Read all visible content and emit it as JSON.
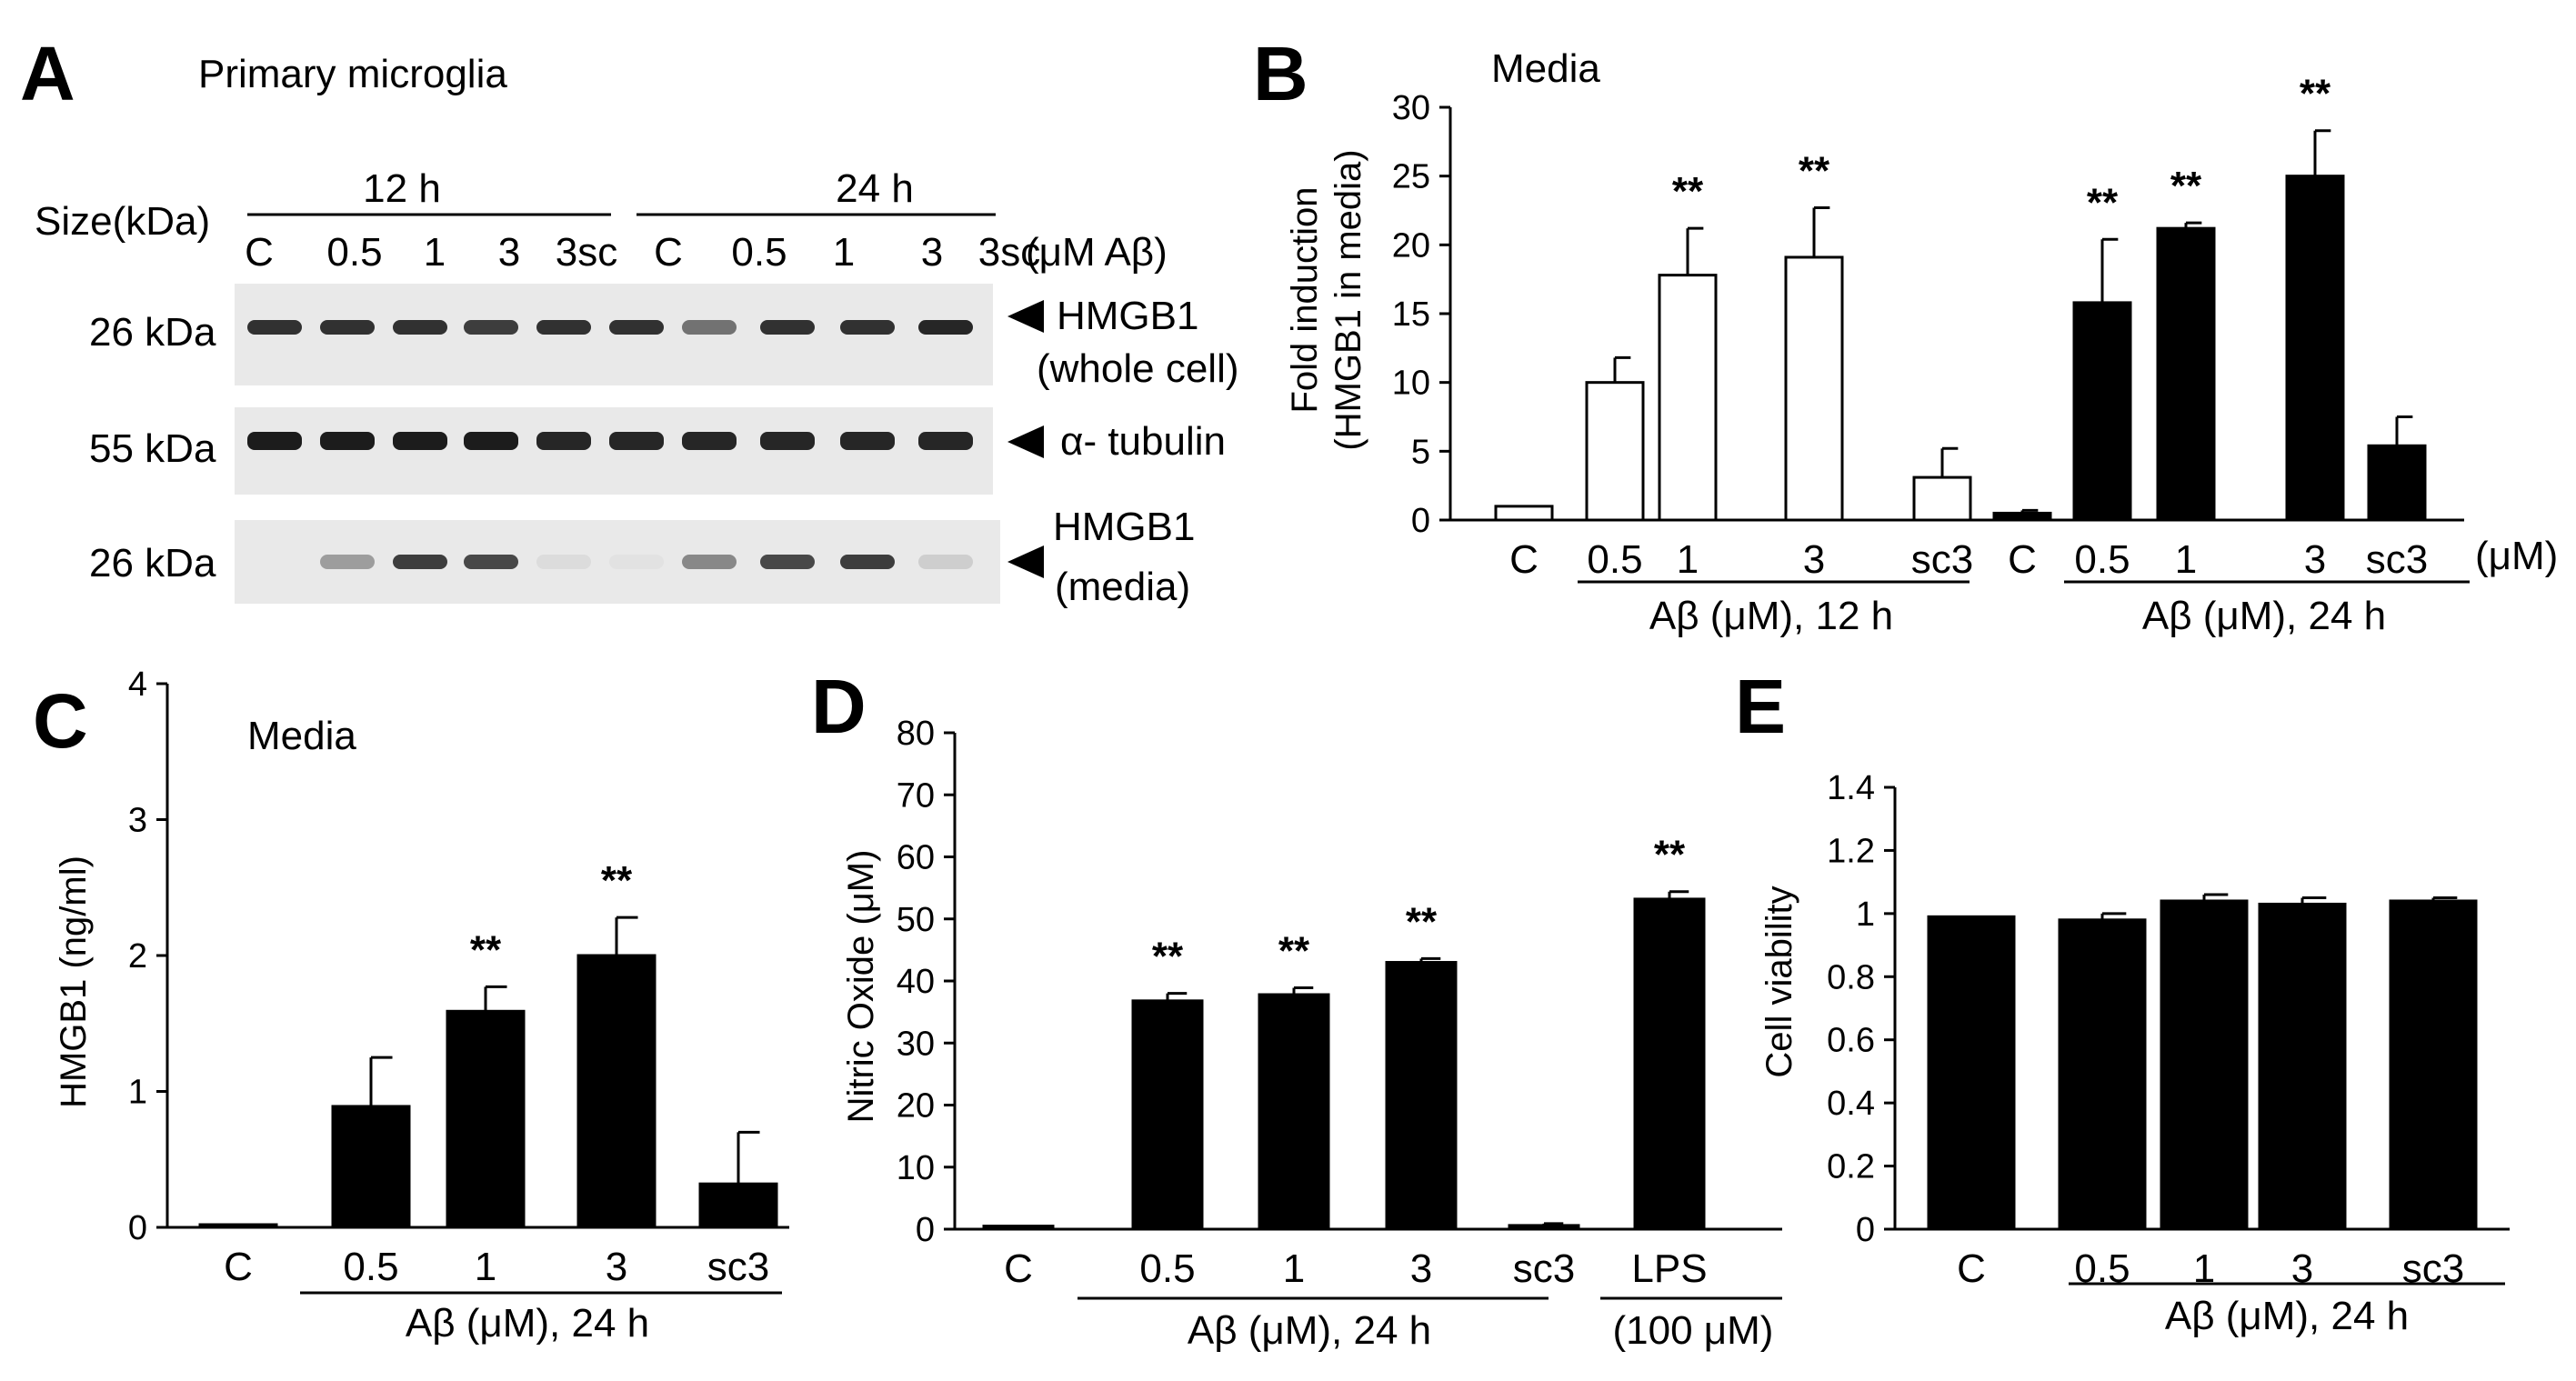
{
  "colors": {
    "ink": "#000000",
    "open_bar": "#ffffff",
    "filled_bar": "#000000",
    "blot_bg": "#e9e9e9",
    "band": "#111111"
  },
  "panel_labels": {
    "a": "A",
    "b": "B",
    "c": "C",
    "d": "D",
    "e": "E"
  },
  "blot": {
    "title": "Primary microglia",
    "size_header": "Size(kDa)",
    "time_12": "12 h",
    "time_24": "24 h",
    "lanes": [
      "C",
      "0.5",
      "1",
      "3",
      "3sc",
      "C",
      "0.5",
      "1",
      "3",
      "3sc"
    ],
    "lane_unit": "(μM Aβ)",
    "rows": [
      {
        "size": "26 kDa",
        "label_1": "HMGB1",
        "label_2": "(whole cell)",
        "intensity": [
          0.85,
          0.85,
          0.85,
          0.8,
          0.85,
          0.85,
          0.55,
          0.85,
          0.85,
          0.9
        ]
      },
      {
        "size": "55 kDa",
        "label_1": "α- tubulin",
        "label_2": "",
        "intensity": [
          0.95,
          0.95,
          0.95,
          0.95,
          0.9,
          0.9,
          0.9,
          0.9,
          0.9,
          0.9
        ]
      },
      {
        "size": "26 kDa",
        "label_1": "HMGB1",
        "label_2": "(media)",
        "intensity": [
          0.0,
          0.35,
          0.8,
          0.75,
          0.06,
          0.03,
          0.45,
          0.75,
          0.8,
          0.12
        ]
      }
    ]
  },
  "chart_data": [
    {
      "id": "B",
      "type": "bar",
      "title": "Media",
      "ylabel_line1": "Fold induction",
      "ylabel_line2": "(HMGB1 in media)",
      "ylim": [
        0,
        30
      ],
      "yticks": [
        "0",
        "5",
        "10",
        "15",
        "20",
        "25",
        "30"
      ],
      "categories": [
        "C",
        "0.5",
        "1",
        "3",
        "sc3",
        "C",
        "0.5",
        "1",
        "3",
        "sc3"
      ],
      "values": [
        1.0,
        10.0,
        17.8,
        19.1,
        3.1,
        0.5,
        15.8,
        21.2,
        25.0,
        5.4
      ],
      "errors": [
        0.0,
        1.8,
        3.4,
        3.6,
        2.1,
        0.2,
        4.6,
        0.4,
        3.3,
        2.1
      ],
      "fills": [
        "open",
        "open",
        "open",
        "open",
        "open",
        "filled",
        "filled",
        "filled",
        "filled",
        "filled"
      ],
      "significance": [
        "",
        "",
        "**",
        "**",
        "",
        "",
        "**",
        "**",
        "**",
        ""
      ],
      "unit_suffix": "(μM)",
      "groups": [
        "Aβ (μM),  12 h",
        "Aβ (μM),  24 h"
      ]
    },
    {
      "id": "C",
      "type": "bar",
      "title": "Media",
      "ylabel": "HMGB1 (ng/ml)",
      "ylim": [
        0,
        4
      ],
      "yticks": [
        "0",
        "1",
        "2",
        "3",
        "4"
      ],
      "categories": [
        "C",
        "0.5",
        "1",
        "3",
        "sc3"
      ],
      "values": [
        0.02,
        0.89,
        1.59,
        2.0,
        0.32
      ],
      "errors": [
        0.0,
        0.36,
        0.18,
        0.28,
        0.38
      ],
      "significance": [
        "",
        "",
        "**",
        "**",
        ""
      ],
      "group": "Aβ (μM),  24 h"
    },
    {
      "id": "D",
      "type": "bar",
      "ylabel": "Nitric Oxide (μM)",
      "ylim": [
        0,
        80
      ],
      "yticks": [
        "0",
        "10",
        "20",
        "30",
        "40",
        "50",
        "60",
        "70",
        "80"
      ],
      "categories": [
        "C",
        "0.5",
        "1",
        "3",
        "sc3",
        "LPS"
      ],
      "values": [
        0.5,
        36.8,
        37.8,
        43.0,
        0.6,
        53.2
      ],
      "errors": [
        0.0,
        1.2,
        1.1,
        0.6,
        0.3,
        1.2
      ],
      "significance": [
        "",
        "**",
        "**",
        "**",
        "",
        "**"
      ],
      "group": "Aβ (μM),  24 h",
      "lps_dose": "(100 μM)"
    },
    {
      "id": "E",
      "type": "bar",
      "ylabel": "Cell viability",
      "ylim": [
        0,
        1.4
      ],
      "yticks": [
        "0",
        "0.2",
        "0.4",
        "0.6",
        "0.8",
        "1",
        "1.2",
        "1.4"
      ],
      "categories": [
        "C",
        "0.5",
        "1",
        "3",
        "sc3"
      ],
      "values": [
        0.99,
        0.98,
        1.04,
        1.03,
        1.04
      ],
      "errors": [
        0.0,
        0.02,
        0.02,
        0.02,
        0.01
      ],
      "group": "Aβ (μM),  24 h"
    }
  ]
}
